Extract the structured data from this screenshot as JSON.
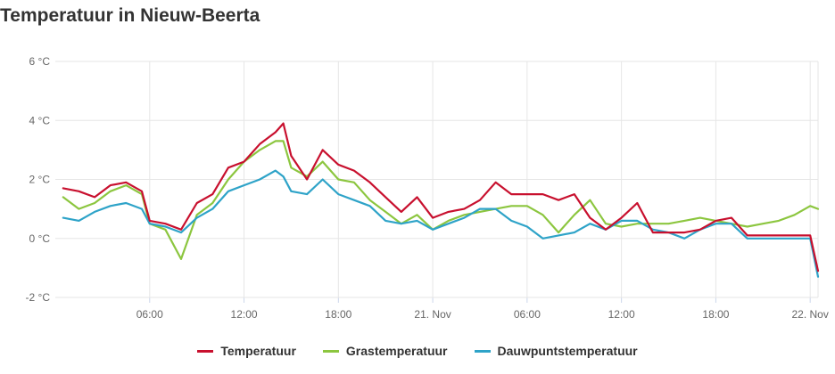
{
  "header": {
    "title": "Temperatuur in Nieuw-Beerta"
  },
  "colors": {
    "temperatuur": "#c8102e",
    "gras": "#8cc63f",
    "dauwpunt": "#2ea3c8",
    "grid": "#e6e6e6"
  },
  "chart_data": {
    "type": "line",
    "title": "Temperatuur in Nieuw-Beerta",
    "xlabel": "",
    "ylabel": "",
    "x_range": [
      "2023-11-20 00:00",
      "2023-11-22 00:30"
    ],
    "ylim": [
      -2,
      6
    ],
    "y_ticks": [
      {
        "value": -2,
        "label": "-2 °C"
      },
      {
        "value": 0,
        "label": "0 °C"
      },
      {
        "value": 2,
        "label": "2 °C"
      },
      {
        "value": 4,
        "label": "4 °C"
      },
      {
        "value": 6,
        "label": "6 °C"
      }
    ],
    "x_ticks": [
      {
        "time": "2023-11-20 06:00",
        "label": "06:00"
      },
      {
        "time": "2023-11-20 12:00",
        "label": "12:00"
      },
      {
        "time": "2023-11-20 18:00",
        "label": "18:00"
      },
      {
        "time": "2023-11-21 00:00",
        "label": "21. Nov"
      },
      {
        "time": "2023-11-21 06:00",
        "label": "06:00"
      },
      {
        "time": "2023-11-21 12:00",
        "label": "12:00"
      },
      {
        "time": "2023-11-21 18:00",
        "label": "18:00"
      },
      {
        "time": "2023-11-22 00:00",
        "label": "22. Nov"
      }
    ],
    "grid": true,
    "legend_position": "bottom",
    "x": [
      "2023-11-20 00:30",
      "2023-11-20 01:30",
      "2023-11-20 02:30",
      "2023-11-20 03:30",
      "2023-11-20 04:30",
      "2023-11-20 05:30",
      "2023-11-20 06:00",
      "2023-11-20 07:00",
      "2023-11-20 08:00",
      "2023-11-20 09:00",
      "2023-11-20 10:00",
      "2023-11-20 11:00",
      "2023-11-20 12:00",
      "2023-11-20 13:00",
      "2023-11-20 14:00",
      "2023-11-20 14:30",
      "2023-11-20 15:00",
      "2023-11-20 16:00",
      "2023-11-20 17:00",
      "2023-11-20 18:00",
      "2023-11-20 19:00",
      "2023-11-20 20:00",
      "2023-11-20 21:00",
      "2023-11-20 22:00",
      "2023-11-20 23:00",
      "2023-11-21 00:00",
      "2023-11-21 01:00",
      "2023-11-21 02:00",
      "2023-11-21 03:00",
      "2023-11-21 04:00",
      "2023-11-21 05:00",
      "2023-11-21 06:00",
      "2023-11-21 07:00",
      "2023-11-21 08:00",
      "2023-11-21 09:00",
      "2023-11-21 10:00",
      "2023-11-21 11:00",
      "2023-11-21 12:00",
      "2023-11-21 13:00",
      "2023-11-21 14:00",
      "2023-11-21 15:00",
      "2023-11-21 16:00",
      "2023-11-21 17:00",
      "2023-11-21 18:00",
      "2023-11-21 19:00",
      "2023-11-21 20:00",
      "2023-11-21 21:00",
      "2023-11-21 22:00",
      "2023-11-21 23:00",
      "2023-11-22 00:00",
      "2023-11-22 00:30"
    ],
    "series": [
      {
        "name": "Temperatuur",
        "color": "#c8102e",
        "values": [
          1.7,
          1.6,
          1.4,
          1.8,
          1.9,
          1.6,
          0.6,
          0.5,
          0.3,
          1.2,
          1.5,
          2.4,
          2.6,
          3.2,
          3.6,
          3.9,
          2.8,
          2.0,
          3.0,
          2.5,
          2.3,
          1.9,
          1.4,
          0.9,
          1.4,
          0.7,
          0.9,
          1.0,
          1.3,
          1.9,
          1.5,
          1.5,
          1.5,
          1.3,
          1.5,
          0.7,
          0.3,
          0.7,
          1.2,
          0.2,
          0.2,
          0.2,
          0.3,
          0.6,
          0.7,
          0.1,
          0.1,
          0.1,
          0.1,
          0.1,
          -1.1
        ]
      },
      {
        "name": "Grastemperatuur",
        "color": "#8cc63f",
        "values": [
          1.4,
          1.0,
          1.2,
          1.6,
          1.8,
          1.5,
          0.5,
          0.3,
          -0.7,
          0.8,
          1.2,
          2.0,
          2.6,
          3.0,
          3.3,
          3.3,
          2.4,
          2.1,
          2.6,
          2.0,
          1.9,
          1.3,
          0.9,
          0.5,
          0.8,
          0.3,
          0.6,
          0.8,
          0.9,
          1.0,
          1.1,
          1.1,
          0.8,
          0.2,
          0.8,
          1.3,
          0.5,
          0.4,
          0.5,
          0.5,
          0.5,
          0.6,
          0.7,
          0.6,
          0.5,
          0.4,
          0.5,
          0.6,
          0.8,
          1.1,
          1.0
        ]
      },
      {
        "name": "Dauwpuntstemperatuur",
        "color": "#2ea3c8",
        "values": [
          0.7,
          0.6,
          0.9,
          1.1,
          1.2,
          1.0,
          0.5,
          0.4,
          0.2,
          0.7,
          1.0,
          1.6,
          1.8,
          2.0,
          2.3,
          2.1,
          1.6,
          1.5,
          2.0,
          1.5,
          1.3,
          1.1,
          0.6,
          0.5,
          0.6,
          0.3,
          0.5,
          0.7,
          1.0,
          1.0,
          0.6,
          0.4,
          0.0,
          0.1,
          0.2,
          0.5,
          0.3,
          0.6,
          0.6,
          0.3,
          0.2,
          0.0,
          0.3,
          0.5,
          0.5,
          0.0,
          0.0,
          0.0,
          0.0,
          0.0,
          -1.3
        ]
      }
    ]
  }
}
